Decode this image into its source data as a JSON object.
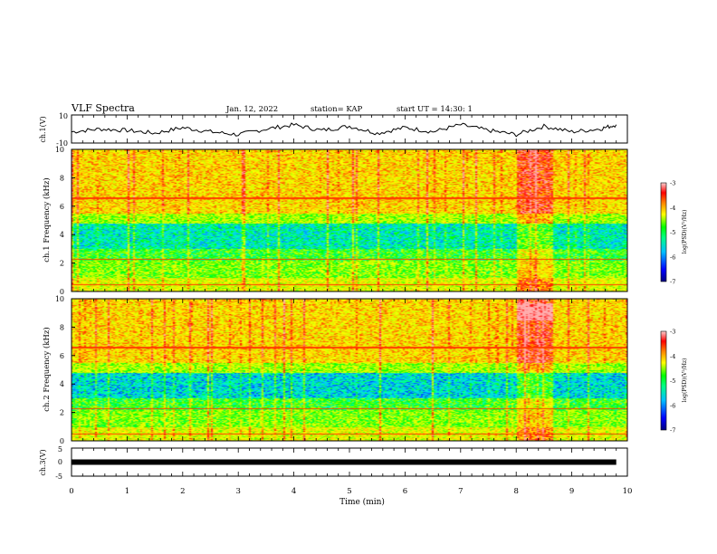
{
  "header": {
    "title": "VLF Spectra",
    "date": "Jan. 12, 2022",
    "station": "station= KAP",
    "start": "start UT = 14:30: 1"
  },
  "chart_data": [
    {
      "type": "line",
      "name": "ch1-voltage",
      "ylabel": "ch.1(V)",
      "ylim": [
        -10,
        10
      ],
      "ytick_labels": [
        "10",
        "-10"
      ],
      "xlim": [
        0,
        10
      ],
      "x": [
        0,
        0.5,
        1,
        1.5,
        2,
        2.5,
        3,
        3.5,
        4,
        4.5,
        5,
        5.5,
        6,
        6.5,
        7,
        7.5,
        8,
        8.5,
        9,
        9.5,
        9.8
      ],
      "y": [
        -2,
        0,
        -1,
        -3,
        1,
        -2,
        -4,
        0,
        3,
        -1,
        2,
        -3,
        1,
        -2,
        3,
        -1,
        -4,
        2,
        -2,
        0,
        3
      ]
    },
    {
      "type": "heatmap",
      "name": "ch1-spectrogram",
      "ylabel": "ch.1 Frequency (kHz)",
      "ylim": [
        0,
        10
      ],
      "ytick_labels": [
        "0",
        "2",
        "4",
        "6",
        "8",
        "10"
      ],
      "xlim": [
        0,
        10
      ],
      "colorbar": {
        "label": "log(PSD)(V²/Hz)",
        "range": [
          -7,
          -3
        ],
        "tick_labels": [
          "-3",
          "-4",
          "-5",
          "-6",
          "-7"
        ]
      }
    },
    {
      "type": "heatmap",
      "name": "ch2-spectrogram",
      "ylabel": "ch.2 Frequency (kHz)",
      "ylim": [
        0,
        10
      ],
      "ytick_labels": [
        "0",
        "2",
        "4",
        "6",
        "8",
        "10"
      ],
      "xlim": [
        0,
        10
      ],
      "colorbar": {
        "label": "log(PSD)(V²/Hz)",
        "range": [
          -7,
          -3
        ],
        "tick_labels": [
          "-3",
          "-4",
          "-5",
          "-6",
          "-7"
        ]
      }
    },
    {
      "type": "line",
      "name": "ch3-voltage",
      "ylabel": "ch.3(V)",
      "ylim": [
        -5,
        5
      ],
      "ytick_labels": [
        "5",
        "0",
        "-5"
      ],
      "xlim": [
        0,
        10
      ],
      "x": [
        0,
        9.8
      ],
      "y": [
        0,
        0
      ]
    }
  ],
  "xaxis": {
    "label": "Time (min)",
    "tick_labels": [
      "0",
      "1",
      "2",
      "3",
      "4",
      "5",
      "6",
      "7",
      "8",
      "9",
      "10"
    ]
  },
  "colors": {
    "ink": "#000000",
    "colormap": [
      "#000080",
      "#0000ff",
      "#00bfff",
      "#00ffbf",
      "#00ff00",
      "#bfff00",
      "#ffff00",
      "#ffa500",
      "#ff0000",
      "#ffb0b0",
      "#ffffff"
    ]
  }
}
